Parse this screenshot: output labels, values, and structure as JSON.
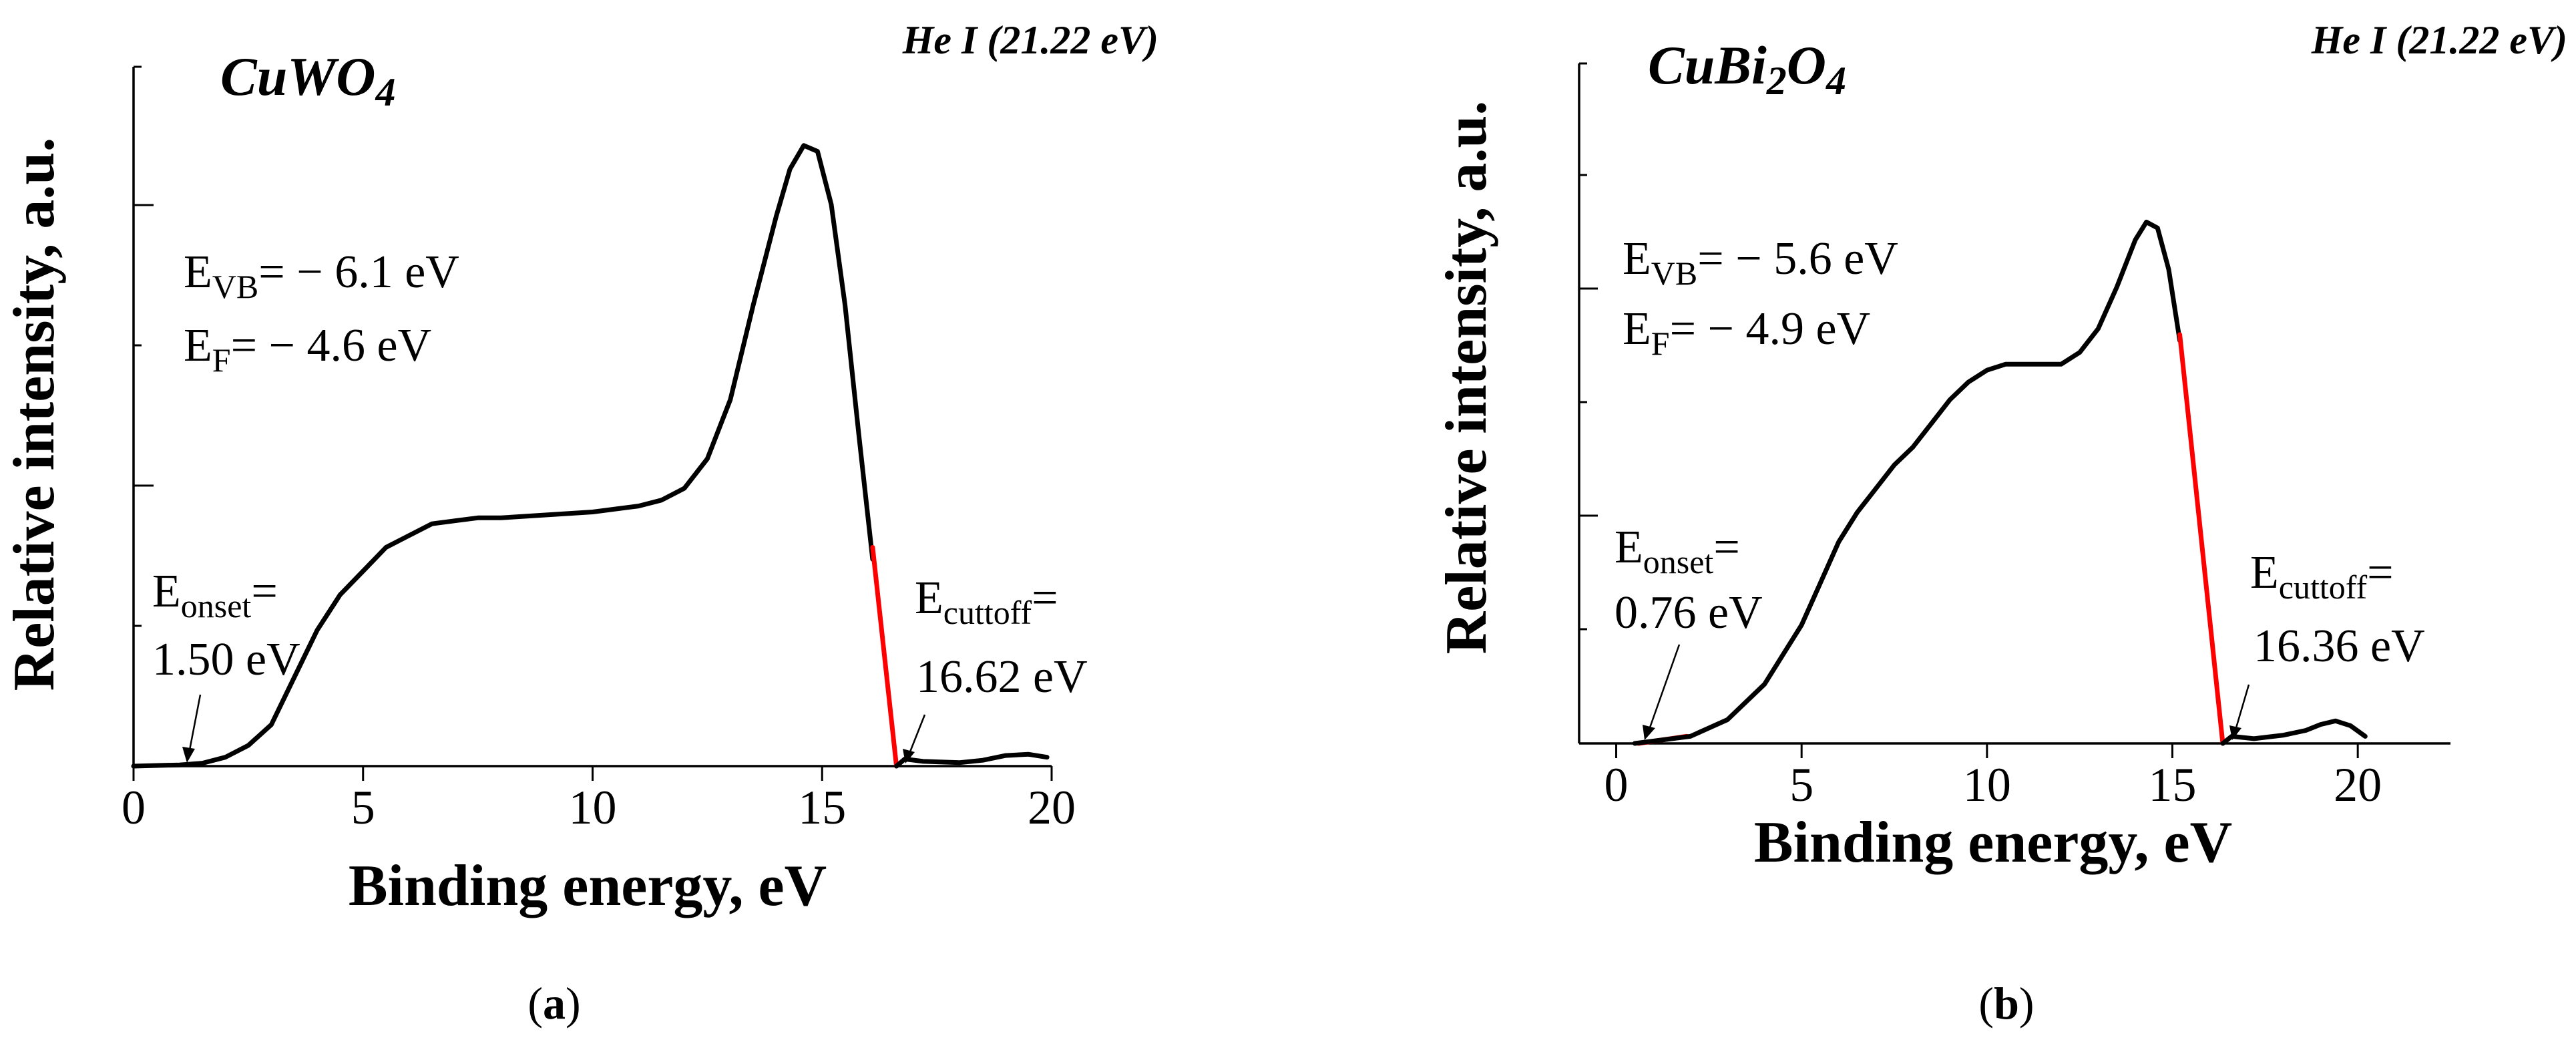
{
  "chart_data": [
    {
      "type": "line",
      "panel_label": "a",
      "sample_base": "CuWO",
      "sample_sub": "4",
      "sample_rest": "",
      "source": "He I (21.22 eV)",
      "xlabel": "Binding energy, eV",
      "ylabel": "Relative intensity, a.u.",
      "xlim": [
        0,
        20
      ],
      "ylim": [
        0,
        1
      ],
      "xticks": [
        0,
        5,
        10,
        15,
        20
      ],
      "annotations": {
        "evb": {
          "sub": "VB",
          "text": "= − 6.1 eV"
        },
        "ef": {
          "sub": "F",
          "text": "= − 4.6 eV"
        },
        "onset": {
          "sub": "onset",
          "eq": "=",
          "value": "1.50 eV",
          "x": 1.5
        },
        "cutoff": {
          "sub": "cuttoff",
          "eq": "=",
          "value": "16.62 eV",
          "x": 16.62
        }
      },
      "series": [
        {
          "name": "spectrum",
          "color": "#000000",
          "points": [
            [
              0,
              0
            ],
            [
              1,
              0.002
            ],
            [
              1.5,
              0.005
            ],
            [
              2,
              0.015
            ],
            [
              2.5,
              0.035
            ],
            [
              3,
              0.07
            ],
            [
              3.5,
              0.15
            ],
            [
              4,
              0.23
            ],
            [
              4.5,
              0.29
            ],
            [
              5,
              0.33
            ],
            [
              5.5,
              0.37
            ],
            [
              6,
              0.39
            ],
            [
              6.5,
              0.41
            ],
            [
              7,
              0.415
            ],
            [
              7.5,
              0.42
            ],
            [
              8,
              0.42
            ],
            [
              9,
              0.425
            ],
            [
              10,
              0.43
            ],
            [
              11,
              0.44
            ],
            [
              11.5,
              0.45
            ],
            [
              12,
              0.47
            ],
            [
              12.5,
              0.52
            ],
            [
              13,
              0.62
            ],
            [
              13.5,
              0.78
            ],
            [
              14,
              0.93
            ],
            [
              14.3,
              1.01
            ],
            [
              14.6,
              1.05
            ],
            [
              14.9,
              1.04
            ],
            [
              15.2,
              0.95
            ],
            [
              15.5,
              0.78
            ],
            [
              15.8,
              0.56
            ],
            [
              16.1,
              0.35
            ]
          ]
        },
        {
          "name": "cutoff fit",
          "color": "#ff0000",
          "points": [
            [
              16.1,
              0.37
            ],
            [
              16.62,
              0
            ]
          ]
        },
        {
          "name": "tail",
          "color": "#000000",
          "points": [
            [
              16.62,
              0
            ],
            [
              16.8,
              0.012
            ],
            [
              17.2,
              0.008
            ],
            [
              18,
              0.006
            ],
            [
              18.5,
              0.01
            ],
            [
              19,
              0.018
            ],
            [
              19.5,
              0.02
            ],
            [
              19.9,
              0.015
            ]
          ]
        }
      ]
    },
    {
      "type": "line",
      "panel_label": "b",
      "sample_base": "CuBi",
      "sample_sub": "2",
      "sample_rest": "O",
      "sample_sub2": "4",
      "source": "He I (21.22 eV)",
      "xlabel": "Binding energy, eV",
      "ylabel": "Relative intensity, a.u.",
      "xlim": [
        -1,
        22.5
      ],
      "ylim": [
        0,
        1
      ],
      "xticks": [
        0,
        5,
        10,
        15,
        20
      ],
      "annotations": {
        "evb": {
          "sub": "VB",
          "text": "= − 5.6 eV"
        },
        "ef": {
          "sub": "F",
          "text": "= − 4.9 eV"
        },
        "onset": {
          "sub": "onset",
          "eq": "=",
          "value": "0.76 eV",
          "x": 0.76
        },
        "cutoff": {
          "sub": "cuttoff",
          "eq": "=",
          "value": "16.36 eV",
          "x": 16.36
        }
      },
      "series": [
        {
          "name": "onset fit",
          "color": "#ff0000",
          "points": [
            [
              0.6,
              0
            ],
            [
              1.9,
              0.012
            ]
          ]
        },
        {
          "name": "spectrum",
          "color": "#000000",
          "points": [
            [
              0.5,
              0
            ],
            [
              1,
              0.004
            ],
            [
              2,
              0.012
            ],
            [
              3,
              0.04
            ],
            [
              4,
              0.1
            ],
            [
              5,
              0.2
            ],
            [
              5.5,
              0.27
            ],
            [
              6,
              0.34
            ],
            [
              6.5,
              0.39
            ],
            [
              7,
              0.43
            ],
            [
              7.5,
              0.47
            ],
            [
              8,
              0.5
            ],
            [
              8.5,
              0.54
            ],
            [
              9,
              0.58
            ],
            [
              9.5,
              0.61
            ],
            [
              10,
              0.63
            ],
            [
              10.5,
              0.64
            ],
            [
              11,
              0.64
            ],
            [
              11.5,
              0.64
            ],
            [
              12,
              0.64
            ],
            [
              12.5,
              0.66
            ],
            [
              13,
              0.7
            ],
            [
              13.5,
              0.77
            ],
            [
              14,
              0.85
            ],
            [
              14.3,
              0.88
            ],
            [
              14.6,
              0.87
            ],
            [
              14.9,
              0.8
            ],
            [
              15.2,
              0.68
            ]
          ]
        },
        {
          "name": "cutoff fit",
          "color": "#ff0000",
          "points": [
            [
              15.2,
              0.69
            ],
            [
              16.36,
              0
            ]
          ]
        },
        {
          "name": "tail",
          "color": "#000000",
          "points": [
            [
              16.36,
              0
            ],
            [
              16.6,
              0.012
            ],
            [
              17.2,
              0.008
            ],
            [
              18,
              0.014
            ],
            [
              18.6,
              0.022
            ],
            [
              19,
              0.032
            ],
            [
              19.4,
              0.038
            ],
            [
              19.8,
              0.03
            ],
            [
              20.2,
              0.012
            ]
          ]
        }
      ]
    }
  ]
}
